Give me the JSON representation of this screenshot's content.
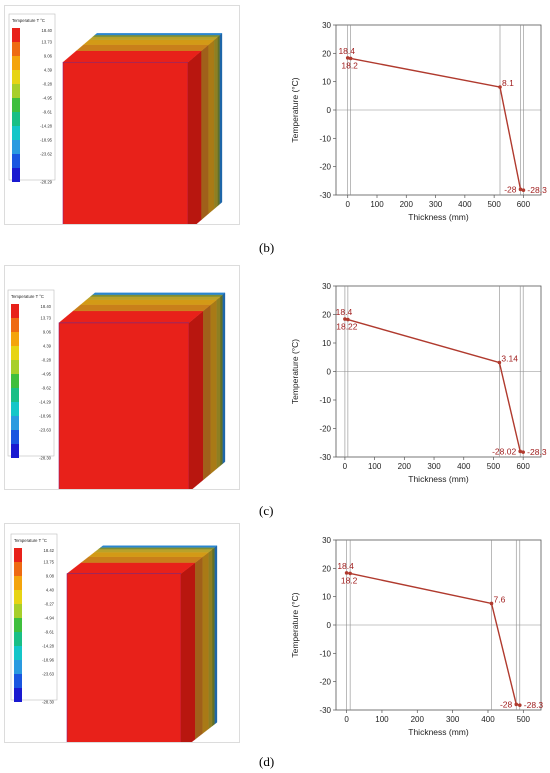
{
  "panels": [
    {
      "label": "(b)",
      "legend": {
        "title": "Temperature T °C",
        "ticks": [
          "18.40",
          "13.73",
          "9.06",
          "4.39",
          "-0.28",
          "-4.95",
          "-9.61",
          "-14.28",
          "-18.95",
          "-23.62",
          "-28.29"
        ]
      },
      "chart_data": {
        "type": "line",
        "xlabel": "Thickness (mm)",
        "ylabel": "Temperature (°C)",
        "xlim": [
          -40,
          660
        ],
        "ylim": [
          -30,
          30
        ],
        "xticks": [
          0,
          100,
          200,
          300,
          400,
          500,
          600
        ],
        "yticks": [
          -30,
          -20,
          -10,
          0,
          10,
          20,
          30
        ],
        "vlines": [
          0,
          10,
          520,
          590,
          600
        ],
        "series": [
          {
            "x": [
              0,
              10,
              520,
              590,
              600
            ],
            "y": [
              18.4,
              18.2,
              8.1,
              -28,
              -28.3
            ]
          }
        ],
        "data_labels": [
          "18.4",
          "18.2",
          "8.1",
          "-28",
          "-28.3"
        ],
        "line_color": "#b03a2e",
        "label_color": "#a01e1e"
      }
    },
    {
      "label": "(c)",
      "legend": {
        "title": "Temperature T °C",
        "ticks": [
          "18.40",
          "13.73",
          "9.06",
          "4.39",
          "-0.28",
          "-4.95",
          "-9.62",
          "-14.29",
          "-18.96",
          "-23.63",
          "-28.30"
        ]
      },
      "chart_data": {
        "type": "line",
        "xlabel": "Thickness (mm)",
        "ylabel": "Temperature (°C)",
        "xlim": [
          -30,
          660
        ],
        "ylim": [
          -30,
          30
        ],
        "xticks": [
          0,
          100,
          200,
          300,
          400,
          500,
          600
        ],
        "yticks": [
          -30,
          -20,
          -10,
          0,
          10,
          20,
          30
        ],
        "vlines": [
          0,
          10,
          520,
          590,
          600
        ],
        "series": [
          {
            "x": [
              0,
              10,
              520,
              590,
              600
            ],
            "y": [
              18.4,
              18.22,
              3.14,
              -28.02,
              -28.3
            ]
          }
        ],
        "data_labels": [
          "18.4",
          "18.22",
          "3.14",
          "-28.02",
          "-28.3"
        ],
        "line_color": "#b03a2e",
        "label_color": "#a01e1e"
      }
    },
    {
      "label": "(d)",
      "legend": {
        "title": "Temperature T °C",
        "ticks": [
          "18.42",
          "13.75",
          "9.08",
          "4.40",
          "-0.27",
          "-4.94",
          "-9.61",
          "-14.28",
          "-18.96",
          "-23.63",
          "-28.30"
        ]
      },
      "chart_data": {
        "type": "line",
        "xlabel": "Thickness (mm)",
        "ylabel": "Temperature (°C)",
        "xlim": [
          -30,
          550
        ],
        "ylim": [
          -30,
          30
        ],
        "xticks": [
          0,
          100,
          200,
          300,
          400,
          500
        ],
        "yticks": [
          -30,
          -20,
          -10,
          0,
          10,
          20,
          30
        ],
        "vlines": [
          0,
          10,
          410,
          480,
          490
        ],
        "series": [
          {
            "x": [
              0,
              10,
              410,
              480,
              490
            ],
            "y": [
              18.4,
              18.2,
              7.6,
              -28,
              -28.3
            ]
          }
        ],
        "data_labels": [
          "18.4",
          "18.2",
          "7.6",
          "-28",
          "-28.3"
        ],
        "line_color": "#b03a2e",
        "label_color": "#a01e1e"
      }
    }
  ],
  "legend_colors": [
    "#e8211a",
    "#ee6a12",
    "#f4a40c",
    "#e7d414",
    "#a7cf2a",
    "#3fbf3e",
    "#19bf86",
    "#14c6c8",
    "#2a9ae0",
    "#1a56e0",
    "#1a1ad0"
  ]
}
